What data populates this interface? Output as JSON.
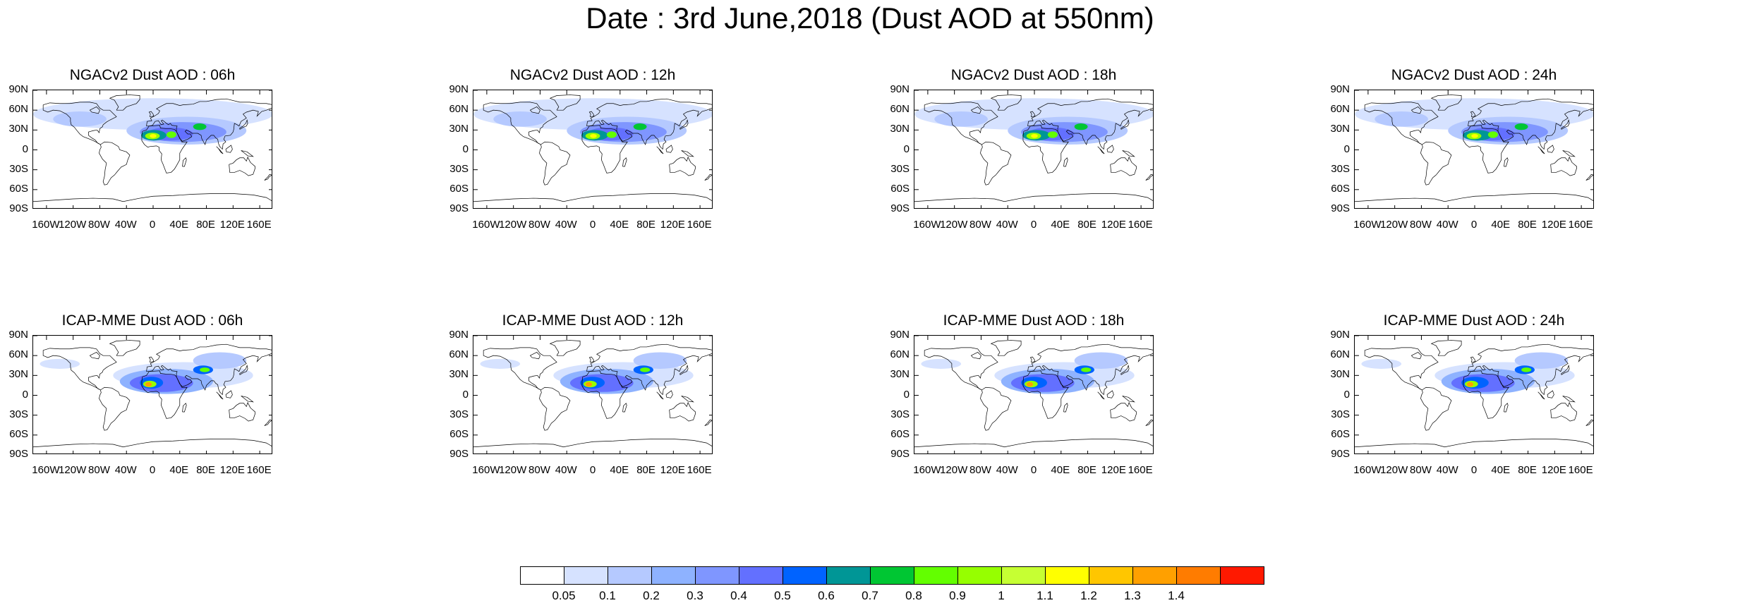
{
  "title": "Date : 3rd June,2018 (Dust AOD at 550nm)",
  "panels": [
    {
      "title": "NGACv2 Dust AOD : 06h",
      "model": "NGACv2",
      "hour": "06h"
    },
    {
      "title": "NGACv2 Dust AOD : 12h",
      "model": "NGACv2",
      "hour": "12h"
    },
    {
      "title": "NGACv2 Dust AOD : 18h",
      "model": "NGACv2",
      "hour": "18h"
    },
    {
      "title": "NGACv2 Dust AOD : 24h",
      "model": "NGACv2",
      "hour": "24h"
    },
    {
      "title": "ICAP-MME Dust AOD : 06h",
      "model": "ICAP-MME",
      "hour": "06h"
    },
    {
      "title": "ICAP-MME Dust AOD : 12h",
      "model": "ICAP-MME",
      "hour": "12h"
    },
    {
      "title": "ICAP-MME Dust AOD : 18h",
      "model": "ICAP-MME",
      "hour": "18h"
    },
    {
      "title": "ICAP-MME Dust AOD : 24h",
      "model": "ICAP-MME",
      "hour": "24h"
    }
  ],
  "lat_ticks": [
    "90N",
    "60N",
    "30N",
    "0",
    "30S",
    "60S",
    "90S"
  ],
  "lon_ticks": [
    "160W",
    "120W",
    "80W",
    "40W",
    "0",
    "40E",
    "80E",
    "120E",
    "160E"
  ],
  "lon_tick_values": [
    -160,
    -120,
    -80,
    -40,
    0,
    40,
    80,
    120,
    160
  ],
  "lat_tick_values": [
    90,
    60,
    30,
    0,
    -30,
    -60,
    -90
  ],
  "colorbar": {
    "labels": [
      "0.05",
      "0.1",
      "0.2",
      "0.3",
      "0.4",
      "0.5",
      "0.6",
      "0.7",
      "0.8",
      "0.9",
      "1",
      "1.1",
      "1.2",
      "1.3",
      "1.4"
    ],
    "colors": [
      "#ffffff",
      "#d6e2ff",
      "#b5c9ff",
      "#8eb2ff",
      "#7f96ff",
      "#6370ff",
      "#0063ff",
      "#009696",
      "#00c633",
      "#63ff00",
      "#96ff00",
      "#c6ff33",
      "#ffff00",
      "#ffc600",
      "#ffa000",
      "#ff7c00",
      "#ff1900"
    ]
  },
  "colors": {
    "land_outline": "#000000",
    "frame": "#000000"
  }
}
